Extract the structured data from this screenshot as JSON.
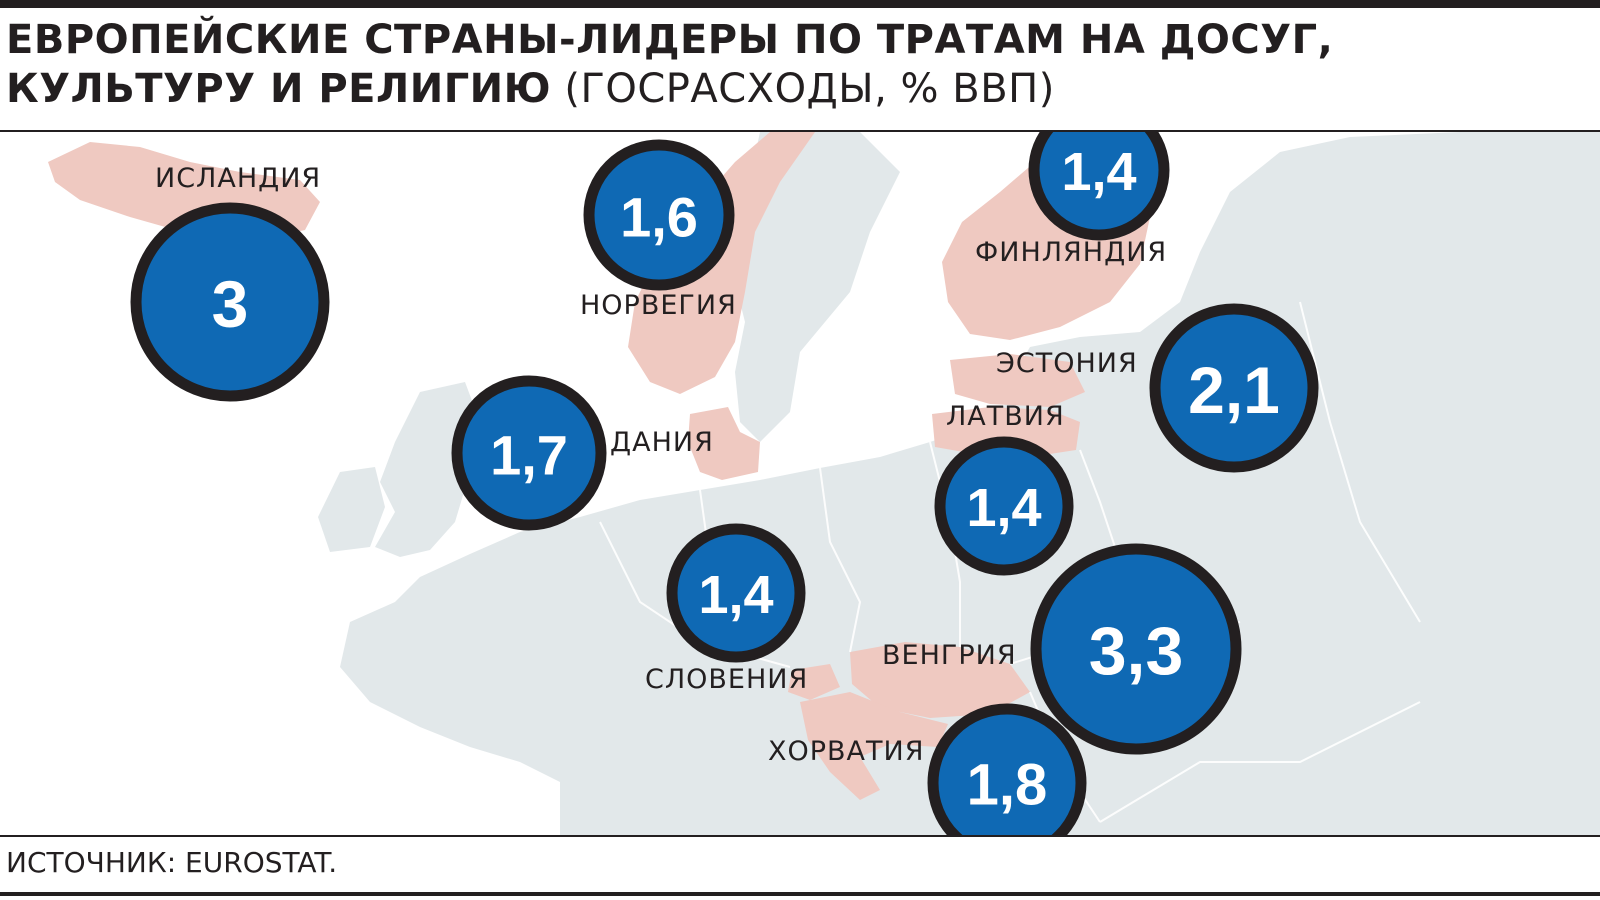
{
  "header": {
    "title_bold": "ЕВРОПЕЙСКИЕ СТРАНЫ-ЛИДЕРЫ ПО ТРАТАМ НА ДОСУГ, КУЛЬТУРУ И РЕЛИГИЮ",
    "title_sub": " (ГОСРАСХОДЫ, % ВВП)"
  },
  "footer": {
    "source": "ИСТОЧНИК: EUROSTAT."
  },
  "colors": {
    "land": "#e2e8ea",
    "highlight": "#efc9c1",
    "bubble_fill": "#0f69b4",
    "bubble_stroke": "#231f20",
    "text": "#231f20"
  },
  "countries": [
    {
      "id": "iceland",
      "label": "ИСЛАНДИЯ",
      "value": "3"
    },
    {
      "id": "norway",
      "label": "НОРВЕГИЯ",
      "value": "1,6"
    },
    {
      "id": "denmark",
      "label": "ДАНИЯ",
      "value": "1,7"
    },
    {
      "id": "finland",
      "label": "ФИНЛЯНДИЯ",
      "value": "1,4"
    },
    {
      "id": "estonia",
      "label": "ЭСТОНИЯ",
      "value": "2,1"
    },
    {
      "id": "latvia",
      "label": "ЛАТВИЯ",
      "value": "1,4"
    },
    {
      "id": "slovenia",
      "label": "СЛОВЕНИЯ",
      "value": "1,4"
    },
    {
      "id": "hungary",
      "label": "ВЕНГРИЯ",
      "value": "3,3"
    },
    {
      "id": "croatia",
      "label": "ХОРВАТИЯ",
      "value": "1,8"
    }
  ]
}
